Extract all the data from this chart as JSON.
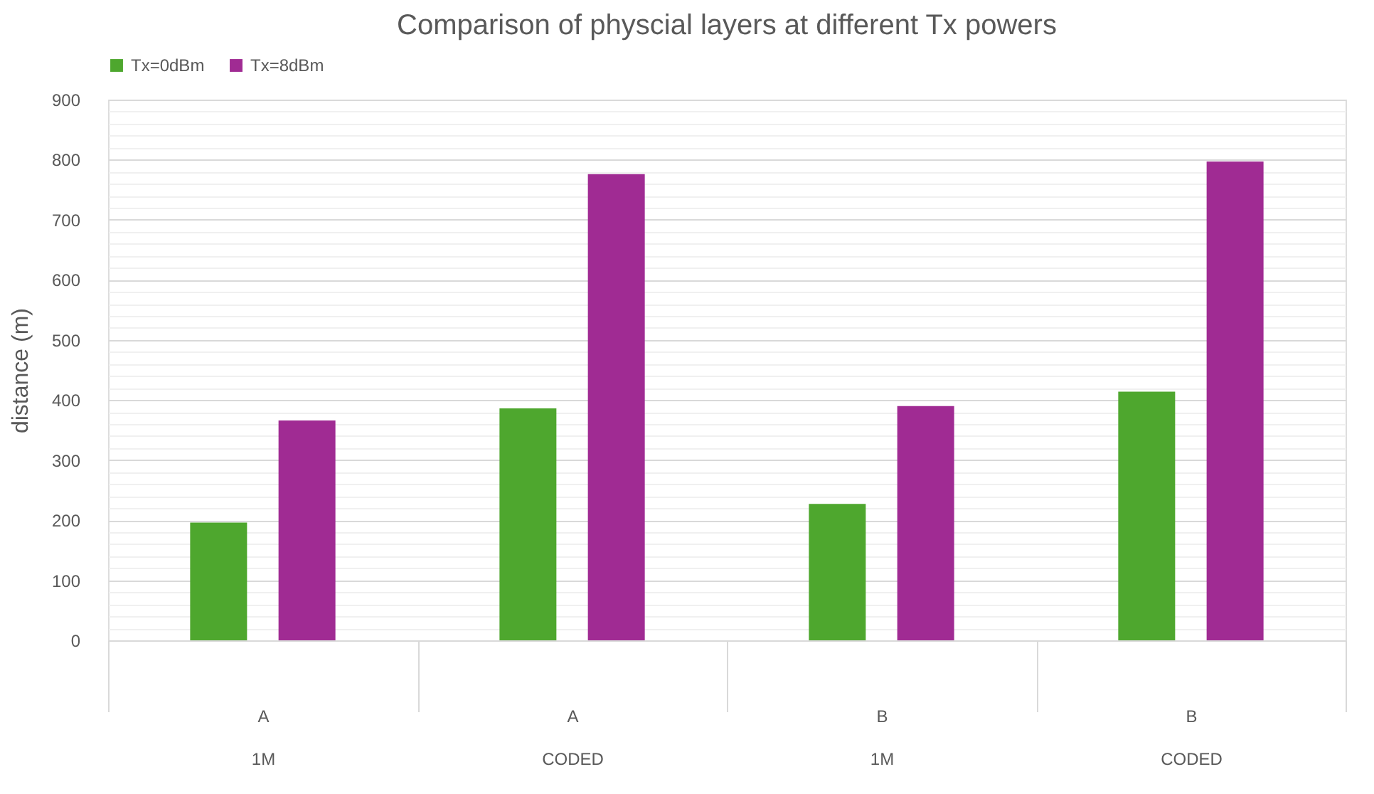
{
  "chart_data": {
    "type": "bar",
    "title": "Comparison of physcial layers at different Tx powers",
    "ylabel": "distance (m)",
    "categories": [
      "A\n1M",
      "A\nCODED",
      "B\n1M",
      "B\nCODED"
    ],
    "series": [
      {
        "name": "Tx=0dBm",
        "color": "#4ea72e",
        "values": [
          196,
          386,
          227,
          414
        ]
      },
      {
        "name": "Tx=8dBm",
        "color": "#a02b93",
        "values": [
          366,
          776,
          390,
          797
        ]
      }
    ],
    "ylim": [
      0,
      900
    ],
    "yticks": [
      0,
      {
        "value": 20,
        "label": null
      },
      {
        "value": 40,
        "label": null
      },
      {
        "value": 60,
        "label": null
      },
      {
        "value": 80,
        "label": null
      },
      100,
      {
        "value": 120,
        "label": null
      },
      {
        "value": 140,
        "label": null
      },
      {
        "value": 160,
        "label": null
      },
      {
        "value": 180,
        "label": null
      },
      200,
      {
        "value": 220,
        "label": null
      },
      {
        "value": 240,
        "label": null
      },
      {
        "value": 260,
        "label": null
      },
      {
        "value": 280,
        "label": null
      },
      300,
      {
        "value": 320,
        "label": null
      },
      {
        "value": 340,
        "label": null
      },
      {
        "value": 360,
        "label": null
      },
      {
        "value": 380,
        "label": null
      },
      400,
      {
        "value": 420,
        "label": null
      },
      {
        "value": 440,
        "label": null
      },
      {
        "value": 460,
        "label": null
      },
      {
        "value": 480,
        "label": null
      },
      500,
      {
        "value": 520,
        "label": null
      },
      {
        "value": 540,
        "label": null
      },
      {
        "value": 560,
        "label": null
      },
      {
        "value": 580,
        "label": null
      },
      600,
      {
        "value": 620,
        "label": null
      },
      {
        "value": 640,
        "label": null
      },
      {
        "value": 660,
        "label": null
      },
      {
        "value": 680,
        "label": null
      },
      700,
      {
        "value": 720,
        "label": null
      },
      {
        "value": 740,
        "label": null
      },
      {
        "value": 760,
        "label": null
      },
      {
        "value": 780,
        "label": null
      },
      800,
      {
        "value": 820,
        "label": null
      },
      {
        "value": 840,
        "label": null
      },
      {
        "value": 860,
        "label": null
      },
      {
        "value": 880,
        "label": null
      },
      900
    ],
    "grid": "y",
    "legend": "top"
  }
}
